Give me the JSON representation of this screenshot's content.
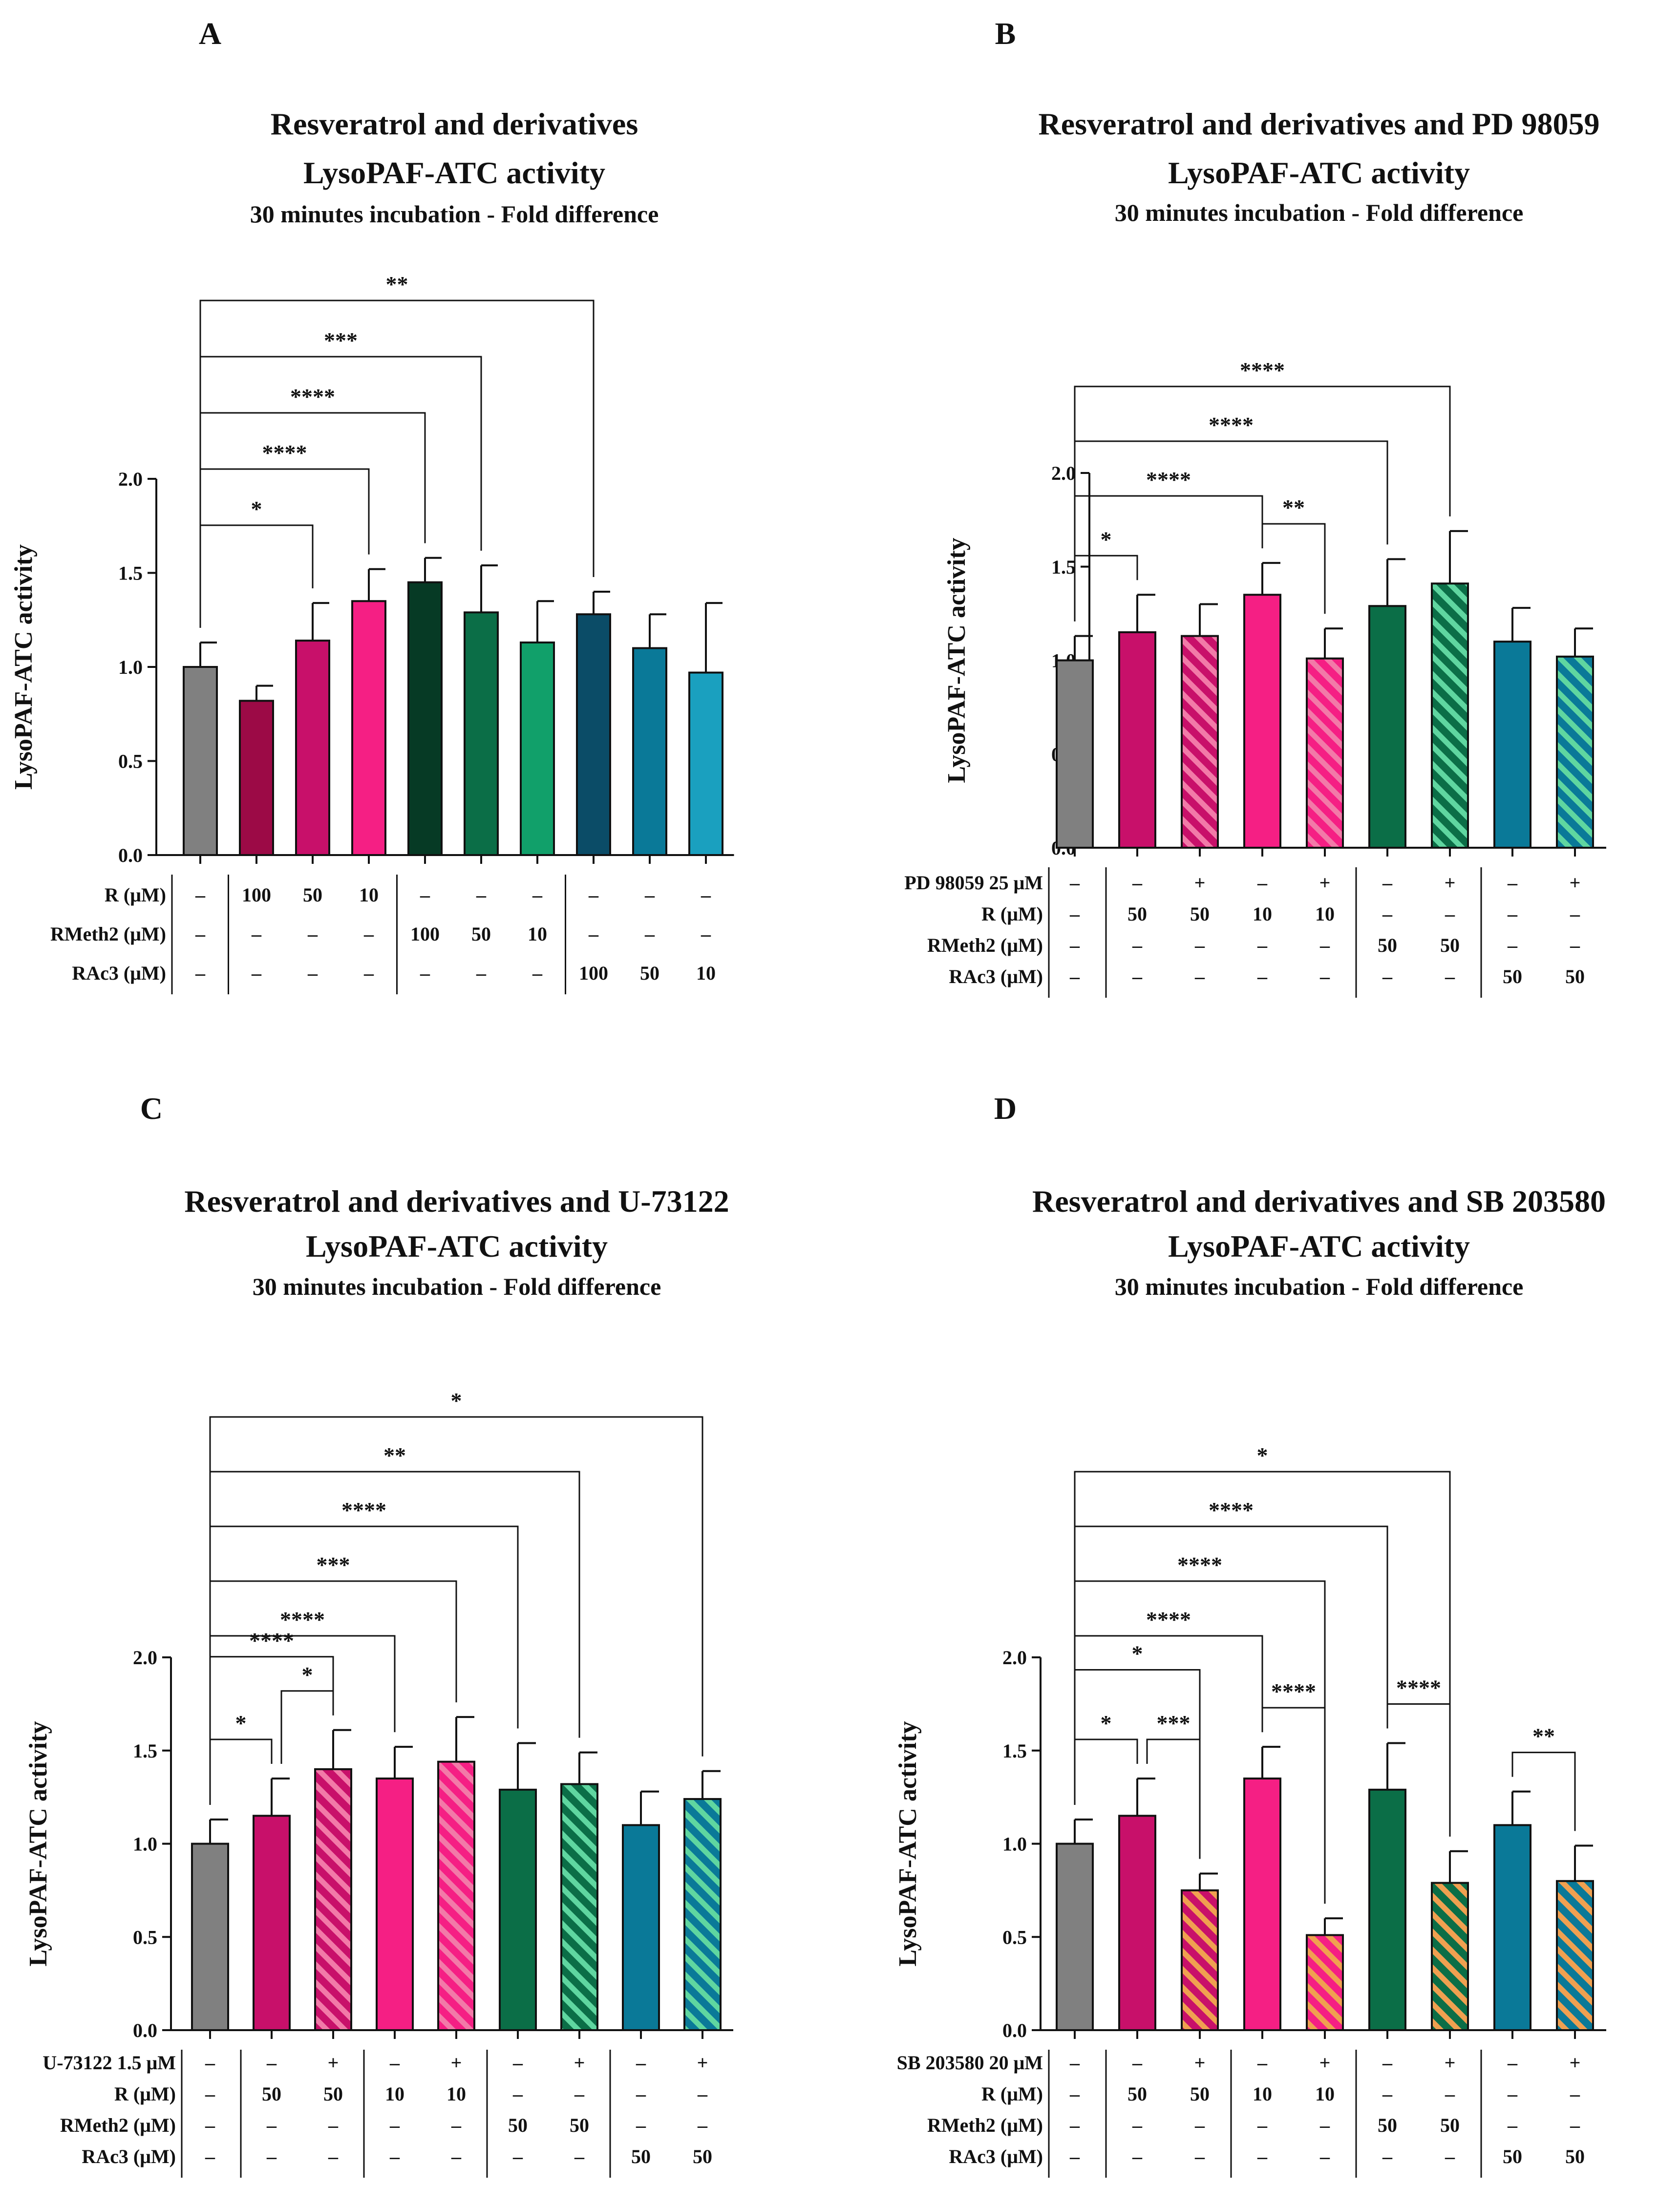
{
  "colors": {
    "vehicle": "#808080",
    "r100": "#9c0a46",
    "r50": "#c8106a",
    "r10": "#f51f84",
    "rm100": "#063a25",
    "rm50": "#0b6e47",
    "rm10": "#11a06a",
    "ra100": "#0b4c67",
    "ra50": "#0a7998",
    "ra10": "#1aa0bf",
    "hatch_green": "#5fd6a0",
    "hatch_pink": "#f27aa8",
    "hatch_orange": "#f0a050"
  },
  "chart_data": [
    {
      "type": "bar",
      "letter": "A",
      "title": "Resveratrol and derivatives",
      "title2": "LysoPAF-ATC activity",
      "subtitle": "30 minutes incubation - Fold difference",
      "ylabel": "LysoPAF-ATC activity",
      "ylim": [
        0,
        2.0
      ],
      "yticks": [
        "0.0",
        "0.5",
        "1.0",
        "1.5",
        "2.0"
      ],
      "categories": [
        "Vehicle",
        "R 100",
        "R 50",
        "R 10",
        "RMeth2 100",
        "RMeth2 50",
        "RMeth2 10",
        "RAc3 100",
        "RAc3 50",
        "RAc3 10"
      ],
      "values": [
        1.0,
        0.82,
        1.14,
        1.35,
        1.45,
        1.29,
        1.13,
        1.28,
        1.1,
        0.97
      ],
      "errors": [
        0.13,
        0.08,
        0.2,
        0.17,
        0.13,
        0.25,
        0.22,
        0.12,
        0.18,
        0.37
      ],
      "bar_colors": [
        "vehicle",
        "r100",
        "r50",
        "r10",
        "rm100",
        "rm50",
        "rm10",
        "ra100",
        "ra50",
        "ra10"
      ],
      "hatch": [
        null,
        null,
        null,
        null,
        null,
        null,
        null,
        null,
        null,
        null
      ],
      "brackets": [
        {
          "from": 0,
          "to": 2,
          "stars": "*"
        },
        {
          "from": 0,
          "to": 3,
          "stars": "****"
        },
        {
          "from": 0,
          "to": 4,
          "stars": "****"
        },
        {
          "from": 0,
          "to": 5,
          "stars": "***"
        },
        {
          "from": 0,
          "to": 7,
          "stars": "**"
        }
      ],
      "condition_rows": [
        {
          "label": "R (μM)",
          "values": [
            "–",
            "100",
            "50",
            "10",
            "–",
            "–",
            "–",
            "–",
            "–",
            "–"
          ]
        },
        {
          "label": "RMeth2 (μM)",
          "values": [
            "–",
            "–",
            "–",
            "–",
            "100",
            "50",
            "10",
            "–",
            "–",
            "–"
          ]
        },
        {
          "label": "RAc3 (μM)",
          "values": [
            "–",
            "–",
            "–",
            "–",
            "–",
            "–",
            "–",
            "100",
            "50",
            "10"
          ]
        }
      ],
      "bold_cells": [],
      "separators_after": [
        0,
        3,
        6
      ]
    },
    {
      "type": "bar",
      "letter": "B",
      "title": "Resveratrol and derivatives and PD 98059",
      "title2": "LysoPAF-ATC activity",
      "subtitle": "30 minutes incubation - Fold difference",
      "ylabel": "LysoPAF-ATC activity",
      "ylim": [
        0,
        2.0
      ],
      "yticks": [
        "0.0",
        "0.5",
        "1.0",
        "1.5",
        "2.0"
      ],
      "categories": [
        "Vehicle",
        "R 50",
        "PD + R 50",
        "R 10",
        "PD + R 10",
        "RMeth2 50",
        "PD + RMeth2 50",
        "RAc3 50",
        "PD + RAc3 50"
      ],
      "values": [
        1.0,
        1.15,
        1.13,
        1.35,
        1.01,
        1.29,
        1.41,
        1.1,
        1.02
      ],
      "errors": [
        0.13,
        0.2,
        0.17,
        0.17,
        0.16,
        0.25,
        0.28,
        0.18,
        0.15
      ],
      "bar_colors": [
        "vehicle",
        "r50",
        "r50",
        "r10",
        "r10",
        "rm50",
        "rm50",
        "ra50",
        "ra50"
      ],
      "hatch": [
        null,
        null,
        "hatch_pink",
        null,
        "hatch_pink",
        null,
        "hatch_green",
        null,
        "hatch_green"
      ],
      "brackets": [
        {
          "from": 0,
          "to": 1,
          "stars": "*"
        },
        {
          "from": 3,
          "to": 4,
          "stars": "**"
        },
        {
          "from": 0,
          "to": 3,
          "stars": "****"
        },
        {
          "from": 0,
          "to": 5,
          "stars": "****"
        },
        {
          "from": 0,
          "to": 6,
          "stars": "****"
        }
      ],
      "condition_rows": [
        {
          "label": "PD 98059 25 μM",
          "values": [
            "–",
            "–",
            "+",
            "–",
            "+",
            "–",
            "+",
            "–",
            "+"
          ]
        },
        {
          "label": "R (μM)",
          "values": [
            "–",
            "50",
            "50",
            "10",
            "10",
            "–",
            "–",
            "–",
            "–"
          ]
        },
        {
          "label": "RMeth2 (μM)",
          "values": [
            "–",
            "–",
            "–",
            "–",
            "–",
            "50",
            "50",
            "–",
            "–"
          ]
        },
        {
          "label": "RAc3 (μM)",
          "values": [
            "–",
            "–",
            "–",
            "–",
            "–",
            "–",
            "–",
            "50",
            "50"
          ]
        }
      ],
      "bold_cells": [
        [
          1,
          4
        ]
      ],
      "separators_after": [
        0,
        4,
        6
      ]
    },
    {
      "type": "bar",
      "letter": "C",
      "title": "Resveratrol and derivatives and U-73122",
      "title2": "LysoPAF-ATC activity",
      "subtitle": "30 minutes incubation - Fold difference",
      "ylabel": "LysoPAF-ATC activity",
      "ylim": [
        0,
        2.0
      ],
      "yticks": [
        "0.0",
        "0.5",
        "1.0",
        "1.5",
        "2.0"
      ],
      "categories": [
        "Vehicle",
        "R 50",
        "U + R 50",
        "R 10",
        "U + R 10",
        "RMeth2 50",
        "U + RMeth2 50",
        "RAc3 50",
        "U + RAc3 50"
      ],
      "values": [
        1.0,
        1.15,
        1.4,
        1.35,
        1.44,
        1.29,
        1.32,
        1.1,
        1.24
      ],
      "errors": [
        0.13,
        0.2,
        0.21,
        0.17,
        0.24,
        0.25,
        0.17,
        0.18,
        0.15
      ],
      "bar_colors": [
        "vehicle",
        "r50",
        "r50",
        "r10",
        "r10",
        "rm50",
        "rm50",
        "ra50",
        "ra50"
      ],
      "hatch": [
        null,
        null,
        "hatch_pink",
        null,
        "hatch_pink",
        null,
        "hatch_green",
        null,
        "hatch_green"
      ],
      "brackets": [
        {
          "from": 0,
          "to": 1,
          "stars": "*"
        },
        {
          "from": 1,
          "to": 2,
          "stars": "*"
        },
        {
          "from": 0,
          "to": 2,
          "stars": "****"
        },
        {
          "from": 0,
          "to": 3,
          "stars": "****"
        },
        {
          "from": 0,
          "to": 4,
          "stars": "***"
        },
        {
          "from": 0,
          "to": 5,
          "stars": "****"
        },
        {
          "from": 0,
          "to": 6,
          "stars": "**"
        },
        {
          "from": 0,
          "to": 8,
          "stars": "*"
        }
      ],
      "condition_rows": [
        {
          "label": "U-73122 1.5 μM",
          "values": [
            "–",
            "–",
            "+",
            "–",
            "+",
            "–",
            "+",
            "–",
            "+"
          ]
        },
        {
          "label": "R (μM)",
          "values": [
            "–",
            "50",
            "50",
            "10",
            "10",
            "–",
            "–",
            "–",
            "–"
          ]
        },
        {
          "label": "RMeth2 (μM)",
          "values": [
            "–",
            "–",
            "–",
            "–",
            "–",
            "50",
            "50",
            "–",
            "–"
          ]
        },
        {
          "label": "RAc3 (μM)",
          "values": [
            "–",
            "–",
            "–",
            "–",
            "–",
            "–",
            "–",
            "50",
            "50"
          ]
        }
      ],
      "bold_cells": [
        [
          1,
          4
        ]
      ],
      "separators_after": [
        0,
        2,
        4,
        6
      ]
    },
    {
      "type": "bar",
      "letter": "D",
      "title": "Resveratrol and derivatives and SB 203580",
      "title2": "LysoPAF-ATC activity",
      "subtitle": "30 minutes incubation - Fold difference",
      "ylabel": "LysoPAF-ATC activity",
      "ylim": [
        0,
        2.0
      ],
      "yticks": [
        "0.0",
        "0.5",
        "1.0",
        "1.5",
        "2.0"
      ],
      "categories": [
        "Vehicle",
        "R 50",
        "SB + R 50",
        "R 10",
        "SB + R 10",
        "RMeth2 50",
        "SB + RMeth2 50",
        "RAc3 50",
        "SB + RAc3 50"
      ],
      "values": [
        1.0,
        1.15,
        0.75,
        1.35,
        0.51,
        1.29,
        0.79,
        1.1,
        0.8
      ],
      "errors": [
        0.13,
        0.2,
        0.09,
        0.17,
        0.09,
        0.25,
        0.17,
        0.18,
        0.19
      ],
      "bar_colors": [
        "vehicle",
        "r50",
        "r50",
        "r10",
        "r10",
        "rm50",
        "rm50",
        "ra50",
        "ra50"
      ],
      "hatch": [
        null,
        null,
        "hatch_orange",
        null,
        "hatch_orange",
        null,
        "hatch_orange",
        null,
        "hatch_orange"
      ],
      "brackets": [
        {
          "from": 0,
          "to": 1,
          "stars": "*"
        },
        {
          "from": 1,
          "to": 2,
          "stars": "***"
        },
        {
          "from": 3,
          "to": 4,
          "stars": "****"
        },
        {
          "from": 5,
          "to": 6,
          "stars": "****"
        },
        {
          "from": 7,
          "to": 8,
          "stars": "**"
        },
        {
          "from": 0,
          "to": 2,
          "stars": "*"
        },
        {
          "from": 0,
          "to": 3,
          "stars": "****"
        },
        {
          "from": 0,
          "to": 4,
          "stars": "****"
        },
        {
          "from": 0,
          "to": 5,
          "stars": "****"
        },
        {
          "from": 0,
          "to": 6,
          "stars": "*"
        }
      ],
      "condition_rows": [
        {
          "label": "SB 203580 20 μM",
          "values": [
            "–",
            "–",
            "+",
            "–",
            "+",
            "–",
            "+",
            "–",
            "+"
          ]
        },
        {
          "label": "R (μM)",
          "values": [
            "–",
            "50",
            "50",
            "10",
            "10",
            "–",
            "–",
            "–",
            "–"
          ]
        },
        {
          "label": "RMeth2 (μM)",
          "values": [
            "–",
            "–",
            "–",
            "–",
            "–",
            "50",
            "50",
            "–",
            "–"
          ]
        },
        {
          "label": "RAc3 (μM)",
          "values": [
            "–",
            "–",
            "–",
            "–",
            "–",
            "–",
            "–",
            "50",
            "50"
          ]
        }
      ],
      "bold_cells": [
        [
          1,
          4
        ]
      ],
      "separators_after": [
        0,
        2,
        4,
        6
      ]
    }
  ]
}
